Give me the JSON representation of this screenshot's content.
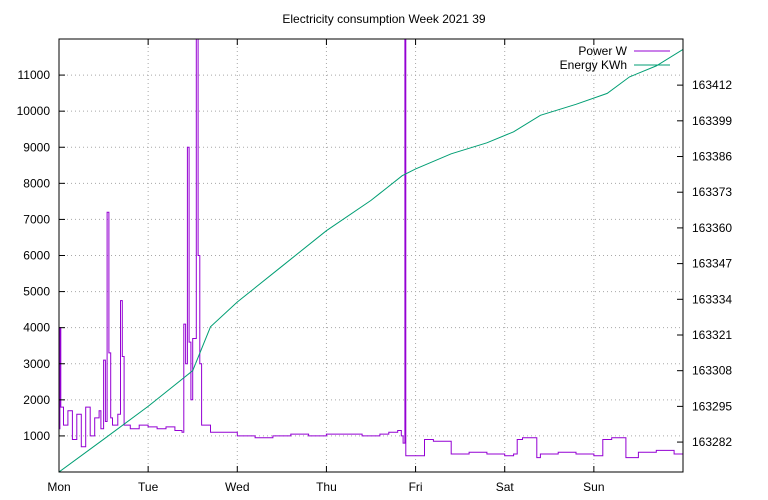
{
  "chart_data": {
    "type": "line",
    "title": "Electricity consumption Week 2021 39",
    "x_ticks": [
      "Mon",
      "Tue",
      "Wed",
      "Thu",
      "Fri",
      "Sat",
      "Sun"
    ],
    "x_range_days": [
      0,
      7
    ],
    "y_left": {
      "ticks": [
        1000,
        2000,
        3000,
        4000,
        5000,
        6000,
        7000,
        8000,
        9000,
        10000,
        11000
      ],
      "range": [
        0,
        12000
      ]
    },
    "y_right": {
      "ticks": [
        163282,
        163295,
        163308,
        163321,
        163334,
        163347,
        163360,
        163373,
        163386,
        163399,
        163412
      ],
      "range": [
        163271.1,
        163428.8
      ]
    },
    "grid": true,
    "legend_position": "top-right",
    "series": [
      {
        "name": "Power W",
        "color": "#9400d3",
        "axis": "left",
        "points": [
          [
            0.0,
            1200
          ],
          [
            0.01,
            4000
          ],
          [
            0.02,
            1800
          ],
          [
            0.05,
            1300
          ],
          [
            0.1,
            1700
          ],
          [
            0.15,
            900
          ],
          [
            0.2,
            1600
          ],
          [
            0.25,
            700
          ],
          [
            0.3,
            1800
          ],
          [
            0.35,
            1000
          ],
          [
            0.4,
            1500
          ],
          [
            0.45,
            1700
          ],
          [
            0.47,
            1200
          ],
          [
            0.5,
            3100
          ],
          [
            0.52,
            1400
          ],
          [
            0.54,
            7200
          ],
          [
            0.56,
            3300
          ],
          [
            0.58,
            1500
          ],
          [
            0.6,
            1300
          ],
          [
            0.66,
            1600
          ],
          [
            0.69,
            4750
          ],
          [
            0.71,
            3200
          ],
          [
            0.73,
            1300
          ],
          [
            0.8,
            1200
          ],
          [
            0.9,
            1300
          ],
          [
            1.0,
            1250
          ],
          [
            1.1,
            1200
          ],
          [
            1.2,
            1250
          ],
          [
            1.3,
            1150
          ],
          [
            1.38,
            1100
          ],
          [
            1.4,
            4100
          ],
          [
            1.42,
            3000
          ],
          [
            1.44,
            9000
          ],
          [
            1.46,
            3600
          ],
          [
            1.48,
            2000
          ],
          [
            1.5,
            3700
          ],
          [
            1.54,
            12000
          ],
          [
            1.56,
            6000
          ],
          [
            1.58,
            3000
          ],
          [
            1.6,
            1300
          ],
          [
            1.7,
            1100
          ],
          [
            1.8,
            1100
          ],
          [
            2.0,
            1000
          ],
          [
            2.2,
            950
          ],
          [
            2.4,
            1000
          ],
          [
            2.6,
            1050
          ],
          [
            2.8,
            1000
          ],
          [
            3.0,
            1050
          ],
          [
            3.2,
            1050
          ],
          [
            3.4,
            1000
          ],
          [
            3.6,
            1050
          ],
          [
            3.7,
            1100
          ],
          [
            3.8,
            1150
          ],
          [
            3.84,
            1000
          ],
          [
            3.86,
            800
          ],
          [
            3.88,
            12000
          ],
          [
            3.89,
            450
          ],
          [
            4.0,
            450
          ],
          [
            4.1,
            900
          ],
          [
            4.2,
            850
          ],
          [
            4.4,
            500
          ],
          [
            4.6,
            550
          ],
          [
            4.8,
            500
          ],
          [
            5.0,
            450
          ],
          [
            5.1,
            500
          ],
          [
            5.14,
            900
          ],
          [
            5.2,
            950
          ],
          [
            5.3,
            950
          ],
          [
            5.36,
            400
          ],
          [
            5.4,
            500
          ],
          [
            5.6,
            550
          ],
          [
            5.8,
            500
          ],
          [
            6.0,
            450
          ],
          [
            6.1,
            900
          ],
          [
            6.2,
            950
          ],
          [
            6.3,
            950
          ],
          [
            6.36,
            400
          ],
          [
            6.5,
            550
          ],
          [
            6.7,
            600
          ],
          [
            6.9,
            500
          ],
          [
            7.0,
            500
          ]
        ]
      },
      {
        "name": "Energy KWh",
        "color": "#009e73",
        "axis": "right",
        "points": [
          [
            0.0,
            163271.1
          ],
          [
            0.5,
            163283
          ],
          [
            1.0,
            163295
          ],
          [
            1.5,
            163308
          ],
          [
            1.7,
            163324
          ],
          [
            2.0,
            163333
          ],
          [
            2.5,
            163346
          ],
          [
            3.0,
            163359
          ],
          [
            3.5,
            163370
          ],
          [
            3.85,
            163379
          ],
          [
            4.0,
            163381.5
          ],
          [
            4.4,
            163387
          ],
          [
            4.8,
            163391
          ],
          [
            5.1,
            163395
          ],
          [
            5.4,
            163401
          ],
          [
            5.8,
            163405
          ],
          [
            6.15,
            163409
          ],
          [
            6.4,
            163415
          ],
          [
            6.7,
            163419
          ],
          [
            7.0,
            163425
          ]
        ]
      }
    ]
  }
}
